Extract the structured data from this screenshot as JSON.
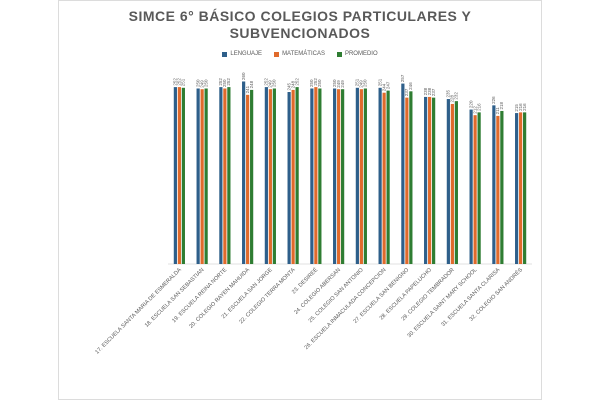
{
  "chart_data": {
    "type": "bar",
    "title": "SIMCE 6° BÁSICO COLEGIOS PARTICULARES Y SUBVENCIONADOS",
    "categories": [
      "17. ESCUELA SANTA MARIA DE ESMERALDA",
      "18. ESCUELA SAN SEBASTIAN",
      "19. ESCUELA REINA NORTE",
      "20. COLEGIO RAYEN MAHUIDA",
      "21. ESCUELA SAN JORGE",
      "22. COLEGIO TERRA MONTA",
      "23. DESIREÉ",
      "24. COLEGIO ABERSAN",
      "25. COLEGIO SAN ANTONIO",
      "26. ESCUELA INMACULADA CONCEPCION",
      "27. ESCUELA SAN BENIGNO",
      "28. ESCUELA PAPELUCHO",
      "29. COLEGIO TEMBRADOR",
      "30. ESCUELA SAINT MARY SCHOOL",
      "31. ESCUELA SANTA CLARISA",
      "32. COLEGIO SAN ANDRÉS"
    ],
    "series": [
      {
        "name": "LENGUAJE",
        "color": "#2e5f8a",
        "values": [
          252,
          250,
          252,
          260,
          252,
          245,
          250,
          250,
          251,
          251,
          257,
          238,
          235,
          220,
          226,
          215
        ]
      },
      {
        "name": "MATEMÁTICAS",
        "color": "#e06a2c",
        "values": [
          252,
          249,
          250,
          241,
          249,
          248,
          252,
          249,
          249,
          244,
          237,
          238,
          228,
          212,
          211,
          216
        ]
      },
      {
        "name": "PROMEDIO",
        "color": "#2f7d32",
        "values": [
          251,
          250,
          252,
          248,
          250,
          252,
          250,
          249,
          250,
          247,
          246,
          237,
          232,
          216,
          218,
          216
        ]
      }
    ],
    "ylim": [
      0,
      280
    ],
    "legend_position": "top-center",
    "data_labels": true,
    "grid": false
  }
}
